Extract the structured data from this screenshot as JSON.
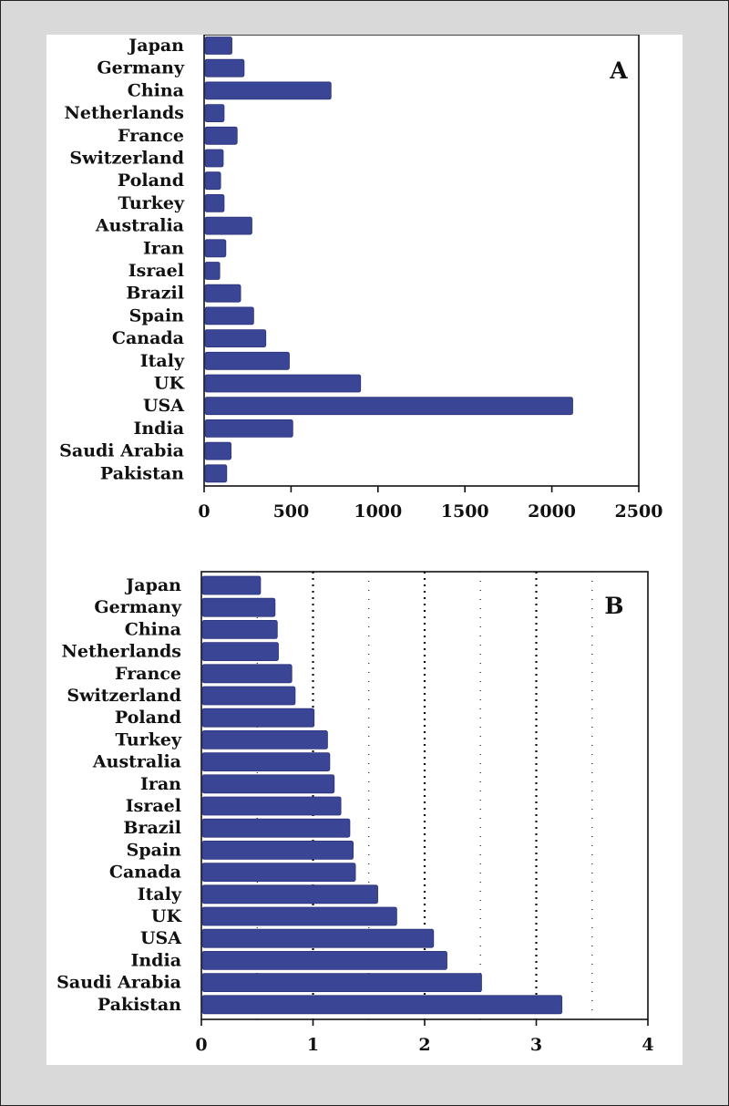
{
  "chart_data": [
    {
      "type": "bar",
      "orientation": "horizontal",
      "panel_label": "A",
      "categories": [
        "Japan",
        "Germany",
        "China",
        "Netherlands",
        "France",
        "Switzerland",
        "Poland",
        "Turkey",
        "Australia",
        "Iran",
        "Israel",
        "Brazil",
        "Spain",
        "Canada",
        "Italy",
        "UK",
        "USA",
        "India",
        "Saudi Arabia",
        "Pakistan"
      ],
      "values": [
        160,
        230,
        730,
        115,
        190,
        110,
        95,
        115,
        275,
        125,
        90,
        210,
        285,
        355,
        490,
        900,
        2120,
        510,
        155,
        130
      ],
      "xlim": [
        0,
        2500
      ],
      "xticks": [
        "0",
        "500",
        "1000",
        "1500",
        "2000",
        "2500"
      ],
      "bar_color": "#3b4596",
      "grid": false
    },
    {
      "type": "bar",
      "orientation": "horizontal",
      "panel_label": "B",
      "categories": [
        "Japan",
        "Germany",
        "China",
        "Netherlands",
        "France",
        "Switzerland",
        "Poland",
        "Turkey",
        "Australia",
        "Iran",
        "Israel",
        "Brazil",
        "Spain",
        "Canada",
        "Italy",
        "UK",
        "USA",
        "India",
        "Saudi Arabia",
        "Pakistan"
      ],
      "values": [
        0.53,
        0.66,
        0.68,
        0.69,
        0.81,
        0.84,
        1.01,
        1.13,
        1.15,
        1.19,
        1.25,
        1.33,
        1.36,
        1.38,
        1.58,
        1.75,
        2.08,
        2.2,
        2.51,
        3.23
      ],
      "xlim": [
        0,
        4
      ],
      "xticks": [
        "0",
        "1",
        "2",
        "3",
        "4"
      ],
      "gridlines_major": [
        1,
        2,
        3
      ],
      "gridlines_minor": [
        0.5,
        1.5,
        2.5,
        3.5
      ],
      "bar_color": "#3b4596",
      "grid": true
    }
  ]
}
